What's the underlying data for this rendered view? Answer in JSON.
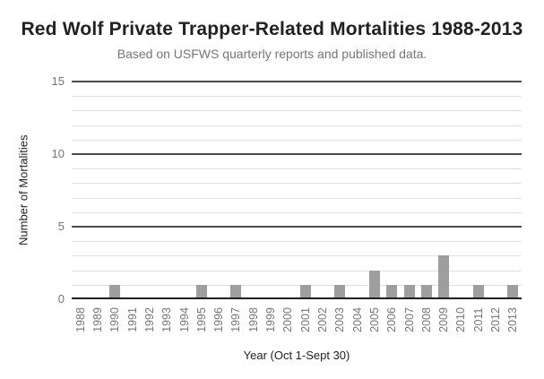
{
  "chart_data": {
    "type": "bar",
    "title": "Red Wolf Private Trapper-Related Mortalities 1988-2013",
    "subtitle": "Based on USFWS quarterly reports and published data.",
    "xlabel": "Year (Oct 1-Sept 30)",
    "ylabel": "Number of Mortalities",
    "categories": [
      "1988",
      "1989",
      "1990",
      "1991",
      "1992",
      "1993",
      "1994",
      "1995",
      "1996",
      "1997",
      "1998",
      "1999",
      "2000",
      "2001",
      "2002",
      "2003",
      "2004",
      "2005",
      "2006",
      "2007",
      "2008",
      "2009",
      "2010",
      "2011",
      "2012",
      "2013"
    ],
    "values": [
      0,
      0,
      1,
      0,
      0,
      0,
      0,
      1,
      0,
      1,
      0,
      0,
      0,
      1,
      0,
      1,
      0,
      2,
      1,
      1,
      1,
      3,
      0,
      1,
      0,
      1
    ],
    "ylim": [
      0,
      15
    ],
    "yticks": [
      0,
      5,
      10,
      15
    ],
    "minor_grid_step": 1,
    "grid": "on",
    "legend_position": "none",
    "colors": {
      "bar": "#9e9e9e",
      "major_grid": "#4a4a4a",
      "minor_grid": "#e0e0e0",
      "baseline": "#212121",
      "tick_label": "#757575",
      "title": "#212121",
      "subtitle": "#757575",
      "axis_title": "#212121",
      "background": "#ffffff"
    }
  }
}
